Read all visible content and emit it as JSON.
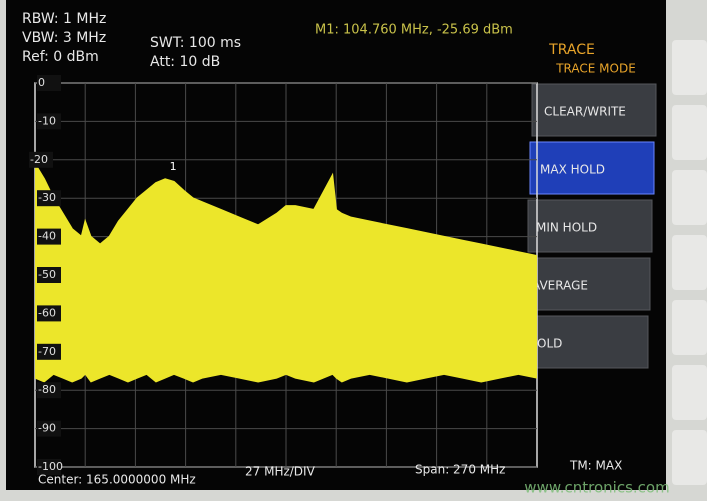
{
  "header": {
    "rbw": "RBW: 1 MHz",
    "vbw": "VBW: 3 MHz",
    "ref": "Ref: 0 dBm",
    "swt": "SWT: 100 ms",
    "att": "Att: 10 dB",
    "marker": "M1: 104.760 MHz, -25.69 dBm"
  },
  "menu": {
    "title": "TRACE",
    "subtitle": "TRACE MODE",
    "items": [
      "CLEAR/WRITE",
      "MAX HOLD",
      "MIN HOLD",
      "AVERAGE",
      "HOLD"
    ],
    "active": 1
  },
  "footer": {
    "center": "Center: 165.0000000 MHz",
    "div": "27 MHz/DIV",
    "span": "Span: 270 MHz",
    "mode": "TM: MAX"
  },
  "watermark": "www.cntronics.com",
  "chart_data": {
    "type": "band",
    "color": "#ece62a",
    "grid": true,
    "xlim": [
      30,
      300
    ],
    "ylim": [
      -100,
      0
    ],
    "yticks": [
      0,
      -10,
      -20,
      -30,
      -40,
      -50,
      -60,
      -70,
      -80,
      -90,
      -100
    ],
    "x": [
      30,
      35,
      40,
      45,
      50,
      55,
      57,
      60,
      65,
      70,
      75,
      80,
      85,
      90,
      95,
      100,
      104.76,
      110,
      115,
      120,
      130,
      140,
      150,
      160,
      165,
      170,
      180,
      190,
      192,
      195,
      200,
      210,
      220,
      230,
      240,
      250,
      260,
      270,
      280,
      290,
      300
    ],
    "values": [
      -21,
      -25,
      -30,
      -34,
      -38,
      -40,
      -36,
      -40,
      -42,
      -40,
      -36,
      -33,
      -30,
      -28,
      -26,
      -25,
      -25.69,
      -28,
      -30,
      -31,
      -33,
      -35,
      -37,
      -34,
      -32,
      -32,
      -33,
      -24,
      -33,
      -34,
      -35,
      -36,
      -37,
      -38,
      -39,
      -40,
      -41,
      -42,
      -43,
      -44,
      -45
    ],
    "lows": [
      -77,
      -78,
      -76,
      -77,
      -78,
      -77,
      -76,
      -78,
      -77,
      -76,
      -77,
      -78,
      -77,
      -76,
      -78,
      -77,
      -76,
      -77,
      -78,
      -77,
      -76,
      -77,
      -78,
      -77,
      -76,
      -77,
      -78,
      -76,
      -77,
      -78,
      -77,
      -76,
      -77,
      -78,
      -77,
      -76,
      -77,
      -78,
      -77,
      -76,
      -77
    ],
    "marker_label": "1"
  }
}
